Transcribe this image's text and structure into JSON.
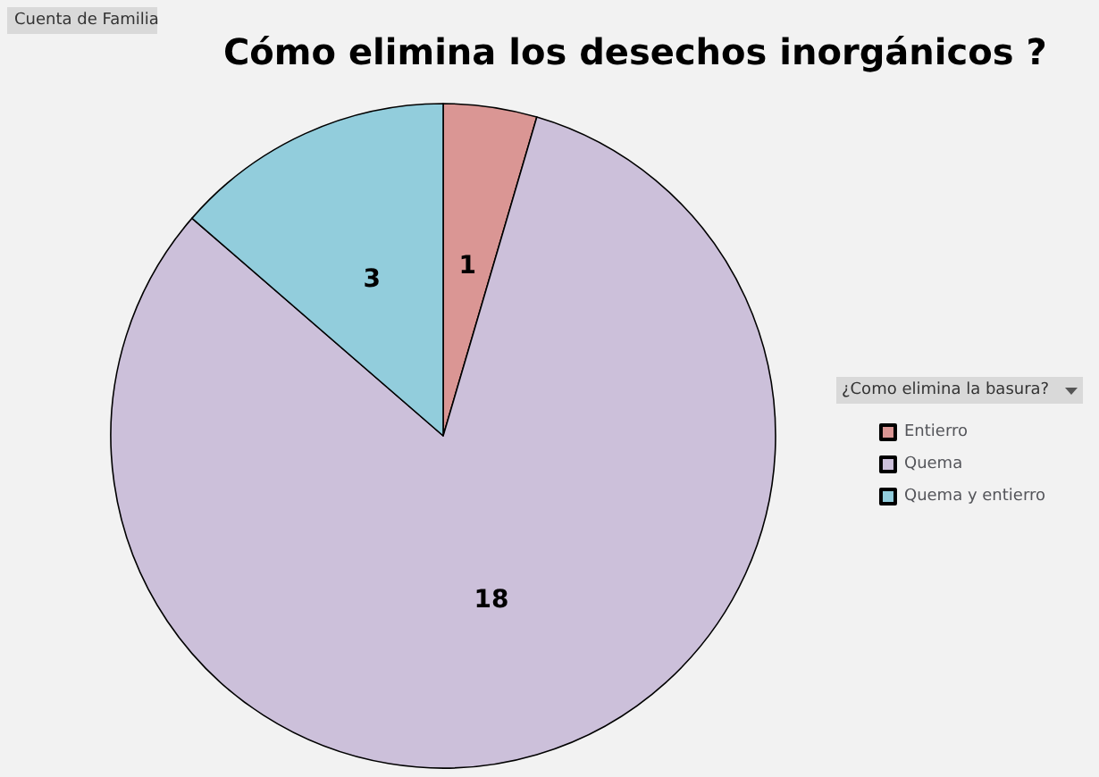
{
  "chart_data": {
    "type": "pie",
    "title": "Cómo elimina los desechos inorgánicos ?",
    "legend_title": "¿Como elimina la basura?",
    "annotations": [
      "Cuenta de Familia"
    ],
    "categories": [
      "Entierro",
      "Quema",
      "Quema y entierro"
    ],
    "values": [
      1,
      18,
      3
    ],
    "colors": [
      "#da9694",
      "#ccc0da",
      "#92cddc"
    ],
    "data_labels": true,
    "legend": "right"
  }
}
